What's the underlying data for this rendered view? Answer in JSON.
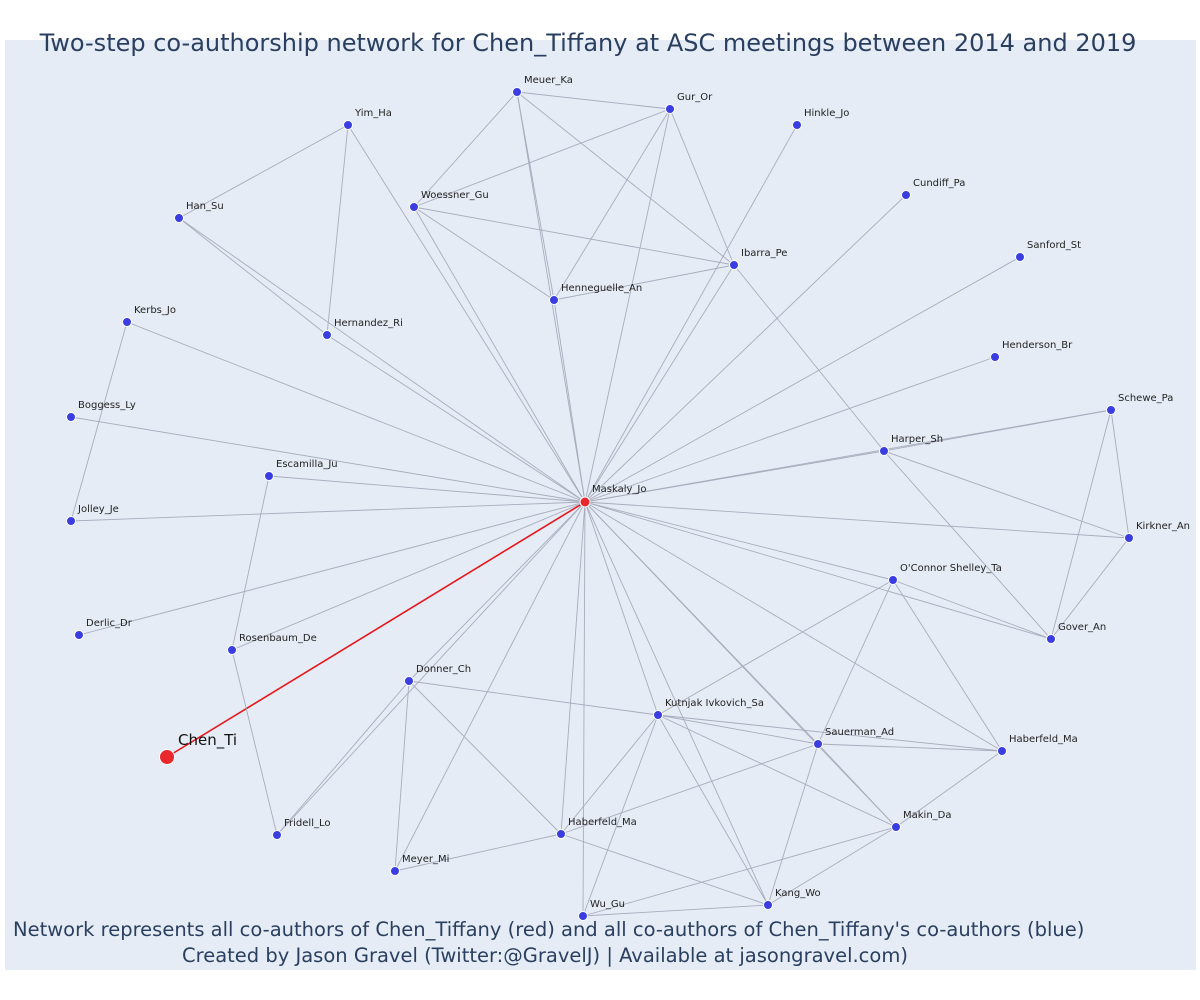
{
  "title": "Two-step co-authorship network for Chen_Tiffany at ASC meetings between 2014 and 2019",
  "footnote_line1": "Network represents all co-authors of Chen_Tiffany (red) and all co-authors of Chen_Tiffany's co-authors (blue)",
  "footnote_line2": "Created by Jason Gravel (Twitter:@GravelJ) | Available at jasongravel.com)",
  "colors": {
    "background": "#e5ecf6",
    "edge": "#a9acbc",
    "focal_edge": "#e8161b",
    "coauthor_node": "#3a3ee0",
    "focal_node": "#e8282d"
  },
  "chart_data": {
    "type": "network",
    "focal": "Chen_Ti",
    "nodes": [
      {
        "id": "Chen_Ti",
        "group": "focal"
      },
      {
        "id": "Maskaly_Jo",
        "group": "coauthor"
      },
      {
        "id": "Meuer_Ka",
        "group": "second"
      },
      {
        "id": "Gur_Or",
        "group": "second"
      },
      {
        "id": "Hinkle_Jo",
        "group": "second"
      },
      {
        "id": "Yim_Ha",
        "group": "second"
      },
      {
        "id": "Han_Su",
        "group": "second"
      },
      {
        "id": "Woessner_Gu",
        "group": "second"
      },
      {
        "id": "Cundiff_Pa",
        "group": "second"
      },
      {
        "id": "Ibarra_Pe",
        "group": "second"
      },
      {
        "id": "Sanford_St",
        "group": "second"
      },
      {
        "id": "Henneguelle_An",
        "group": "second"
      },
      {
        "id": "Kerbs_Jo",
        "group": "second"
      },
      {
        "id": "Hernandez_Ri",
        "group": "second"
      },
      {
        "id": "Henderson_Br",
        "group": "second"
      },
      {
        "id": "Boggess_Ly",
        "group": "second"
      },
      {
        "id": "Schewe_Pa",
        "group": "second"
      },
      {
        "id": "Harper_Sh",
        "group": "second"
      },
      {
        "id": "Escamilla_Ju",
        "group": "second"
      },
      {
        "id": "Jolley_Je",
        "group": "second"
      },
      {
        "id": "Kirkner_An",
        "group": "second"
      },
      {
        "id": "O'Connor Shelley_Ta",
        "group": "second"
      },
      {
        "id": "Derlic_Dr",
        "group": "second"
      },
      {
        "id": "Rosenbaum_De",
        "group": "second"
      },
      {
        "id": "Gover_An",
        "group": "second"
      },
      {
        "id": "Donner_Ch",
        "group": "second"
      },
      {
        "id": "Kutnjak Ivkovich_Sa",
        "group": "second"
      },
      {
        "id": "Sauerman_Ad",
        "group": "second"
      },
      {
        "id": "Haberfeld_Ma_a",
        "label": "Haberfeld_Ma",
        "group": "second"
      },
      {
        "id": "Fridell_Lo",
        "group": "second"
      },
      {
        "id": "Makin_Da",
        "group": "second"
      },
      {
        "id": "Haberfeld_Ma_b",
        "label": "Haberfeld_Ma",
        "group": "second"
      },
      {
        "id": "Meyer_Mi",
        "group": "second"
      },
      {
        "id": "Kang_Wo",
        "group": "second"
      },
      {
        "id": "Wu_Gu",
        "group": "second"
      }
    ],
    "edges": [
      [
        "Chen_Ti",
        "Maskaly_Jo"
      ],
      [
        "Maskaly_Jo",
        "Meuer_Ka"
      ],
      [
        "Maskaly_Jo",
        "Gur_Or"
      ],
      [
        "Maskaly_Jo",
        "Hinkle_Jo"
      ],
      [
        "Maskaly_Jo",
        "Yim_Ha"
      ],
      [
        "Maskaly_Jo",
        "Han_Su"
      ],
      [
        "Maskaly_Jo",
        "Woessner_Gu"
      ],
      [
        "Maskaly_Jo",
        "Cundiff_Pa"
      ],
      [
        "Maskaly_Jo",
        "Ibarra_Pe"
      ],
      [
        "Maskaly_Jo",
        "Sanford_St"
      ],
      [
        "Maskaly_Jo",
        "Henneguelle_An"
      ],
      [
        "Maskaly_Jo",
        "Kerbs_Jo"
      ],
      [
        "Maskaly_Jo",
        "Henderson_Br"
      ],
      [
        "Maskaly_Jo",
        "Boggess_Ly"
      ],
      [
        "Maskaly_Jo",
        "Schewe_Pa"
      ],
      [
        "Maskaly_Jo",
        "Harper_Sh"
      ],
      [
        "Maskaly_Jo",
        "Escamilla_Ju"
      ],
      [
        "Maskaly_Jo",
        "Jolley_Je"
      ],
      [
        "Maskaly_Jo",
        "Kirkner_An"
      ],
      [
        "Maskaly_Jo",
        "O'Connor Shelley_Ta"
      ],
      [
        "Maskaly_Jo",
        "Derlic_Dr"
      ],
      [
        "Maskaly_Jo",
        "Rosenbaum_De"
      ],
      [
        "Maskaly_Jo",
        "Gover_An"
      ],
      [
        "Maskaly_Jo",
        "Donner_Ch"
      ],
      [
        "Maskaly_Jo",
        "Kutnjak Ivkovich_Sa"
      ],
      [
        "Maskaly_Jo",
        "Sauerman_Ad"
      ],
      [
        "Maskaly_Jo",
        "Haberfeld_Ma_a"
      ],
      [
        "Maskaly_Jo",
        "Fridell_Lo"
      ],
      [
        "Maskaly_Jo",
        "Makin_Da"
      ],
      [
        "Maskaly_Jo",
        "Haberfeld_Ma_b"
      ],
      [
        "Maskaly_Jo",
        "Meyer_Mi"
      ],
      [
        "Maskaly_Jo",
        "Kang_Wo"
      ],
      [
        "Maskaly_Jo",
        "Wu_Gu"
      ],
      [
        "Maskaly_Jo",
        "Hernandez_Ri"
      ],
      [
        "Meuer_Ka",
        "Gur_Or"
      ],
      [
        "Meuer_Ka",
        "Ibarra_Pe"
      ],
      [
        "Meuer_Ka",
        "Woessner_Gu"
      ],
      [
        "Meuer_Ka",
        "Henneguelle_An"
      ],
      [
        "Gur_Or",
        "Woessner_Gu"
      ],
      [
        "Gur_Or",
        "Ibarra_Pe"
      ],
      [
        "Gur_Or",
        "Henneguelle_An"
      ],
      [
        "Woessner_Gu",
        "Henneguelle_An"
      ],
      [
        "Woessner_Gu",
        "Ibarra_Pe"
      ],
      [
        "Henneguelle_An",
        "Ibarra_Pe"
      ],
      [
        "Ibarra_Pe",
        "Harper_Sh"
      ],
      [
        "Yim_Ha",
        "Han_Su"
      ],
      [
        "Yim_Ha",
        "Hernandez_Ri"
      ],
      [
        "Han_Su",
        "Hernandez_Ri"
      ],
      [
        "Kerbs_Jo",
        "Jolley_Je"
      ],
      [
        "Escamilla_Ju",
        "Rosenbaum_De"
      ],
      [
        "Rosenbaum_De",
        "Fridell_Lo"
      ],
      [
        "Harper_Sh",
        "Schewe_Pa"
      ],
      [
        "Harper_Sh",
        "Kirkner_An"
      ],
      [
        "Harper_Sh",
        "Gover_An"
      ],
      [
        "Schewe_Pa",
        "Kirkner_An"
      ],
      [
        "Schewe_Pa",
        "Gover_An"
      ],
      [
        "Kirkner_An",
        "Gover_An"
      ],
      [
        "O'Connor Shelley_Ta",
        "Kutnjak Ivkovich_Sa"
      ],
      [
        "O'Connor Shelley_Ta",
        "Sauerman_Ad"
      ],
      [
        "O'Connor Shelley_Ta",
        "Haberfeld_Ma_b"
      ],
      [
        "O'Connor Shelley_Ta",
        "Gover_An"
      ],
      [
        "Donner_Ch",
        "Kutnjak Ivkovich_Sa"
      ],
      [
        "Donner_Ch",
        "Haberfeld_Ma_a"
      ],
      [
        "Donner_Ch",
        "Fridell_Lo"
      ],
      [
        "Donner_Ch",
        "Meyer_Mi"
      ],
      [
        "Kutnjak Ivkovich_Sa",
        "Sauerman_Ad"
      ],
      [
        "Kutnjak Ivkovich_Sa",
        "Haberfeld_Ma_a"
      ],
      [
        "Kutnjak Ivkovich_Sa",
        "Kang_Wo"
      ],
      [
        "Kutnjak Ivkovich_Sa",
        "Wu_Gu"
      ],
      [
        "Kutnjak Ivkovich_Sa",
        "Makin_Da"
      ],
      [
        "Kutnjak Ivkovich_Sa",
        "Haberfeld_Ma_b"
      ],
      [
        "Sauerman_Ad",
        "Haberfeld_Ma_b"
      ],
      [
        "Sauerman_Ad",
        "Makin_Da"
      ],
      [
        "Sauerman_Ad",
        "Kang_Wo"
      ],
      [
        "Sauerman_Ad",
        "Haberfeld_Ma_a"
      ],
      [
        "Haberfeld_Ma_a",
        "Meyer_Mi"
      ],
      [
        "Haberfeld_Ma_a",
        "Kang_Wo"
      ],
      [
        "Haberfeld_Ma_b",
        "Makin_Da"
      ],
      [
        "Makin_Da",
        "Kang_Wo"
      ],
      [
        "Makin_Da",
        "Wu_Gu"
      ],
      [
        "Kang_Wo",
        "Wu_Gu"
      ]
    ]
  }
}
